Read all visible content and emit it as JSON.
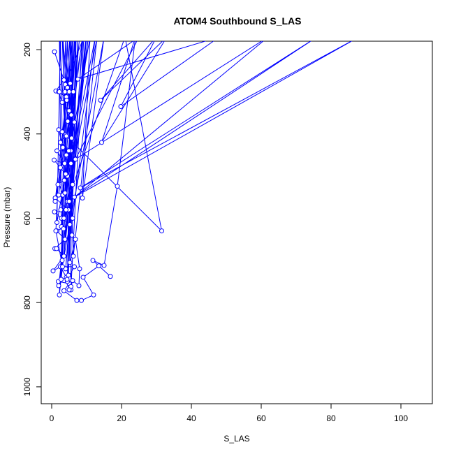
{
  "chart_data": {
    "type": "line",
    "title": "ATOM4 Southbound S_LAS",
    "xlabel": "S_LAS",
    "ylabel": "Pressure (mbar)",
    "xlim": [
      -3,
      109
    ],
    "ylim": [
      1040,
      180
    ],
    "y_inverted": true,
    "x_ticks": [
      0,
      20,
      40,
      60,
      80,
      100
    ],
    "y_ticks": [
      200,
      400,
      600,
      800,
      1000
    ],
    "grid": false,
    "legend": "none",
    "color": "#0000ff",
    "series": [
      {
        "values": [
          [
            0.8,
            205
          ],
          [
            3.5,
            272
          ],
          [
            1.2,
            298
          ],
          [
            4.2,
            312
          ],
          [
            2.0,
            300
          ],
          [
            3.0,
            325
          ],
          [
            5.0,
            345
          ],
          [
            6.5,
            372
          ],
          [
            4.0,
            402
          ],
          [
            2.5,
            420
          ],
          [
            5.5,
            440
          ],
          [
            1.5,
            440
          ],
          [
            3.5,
            470
          ],
          [
            0.7,
            462
          ],
          [
            4.5,
            500
          ],
          [
            2.2,
            520
          ],
          [
            3.2,
            545
          ],
          [
            1.0,
            552
          ],
          [
            4.8,
            580
          ],
          [
            0.8,
            585
          ],
          [
            2.8,
            600
          ],
          [
            5.2,
            615
          ],
          [
            1.5,
            630
          ],
          [
            3.8,
            650
          ],
          [
            0.9,
            672
          ],
          [
            1.4,
            672
          ],
          [
            3.5,
            690
          ],
          [
            0.4,
            725
          ],
          [
            2.5,
            715
          ],
          [
            4.2,
            740
          ],
          [
            1.9,
            750
          ],
          [
            5.0,
            755
          ],
          [
            3.5,
            772
          ],
          [
            7.2,
            795
          ],
          [
            8.5,
            795
          ],
          [
            12.0,
            782
          ],
          [
            9.0,
            740
          ],
          [
            13.5,
            713
          ],
          [
            16.8,
            738
          ],
          [
            11.8,
            700
          ],
          [
            15.0,
            712
          ],
          [
            18.8,
            524
          ],
          [
            24.0,
            170
          ],
          [
            14.3,
            420
          ],
          [
            33.0,
            170
          ],
          [
            14.0,
            320
          ],
          [
            30.0,
            170
          ],
          [
            19.8,
            335
          ],
          [
            48.0,
            170
          ],
          [
            7.5,
            270
          ],
          [
            25.0,
            170
          ],
          [
            6.8,
            460
          ],
          [
            62.0,
            170
          ],
          [
            6.5,
            550
          ],
          [
            88.0,
            170
          ],
          [
            8.2,
            528
          ],
          [
            76.0,
            170
          ],
          [
            4.5,
            560
          ],
          [
            21.0,
            170
          ],
          [
            31.5,
            630
          ],
          [
            3.0,
            395
          ],
          [
            2.5,
            170
          ],
          [
            1.5,
            610
          ],
          [
            11.0,
            170
          ],
          [
            8.8,
            552
          ],
          [
            15.0,
            170
          ],
          [
            2.0,
            760
          ],
          [
            10.0,
            170
          ],
          [
            4.0,
            720
          ],
          [
            9.0,
            170
          ],
          [
            1.0,
            560
          ],
          [
            6.0,
            170
          ],
          [
            5.8,
            640
          ],
          [
            7.0,
            170
          ],
          [
            3.0,
            700
          ],
          [
            4.5,
            170
          ],
          [
            6.0,
            600
          ],
          [
            12.5,
            170
          ],
          [
            3.8,
            540
          ],
          [
            8.0,
            170
          ],
          [
            2.8,
            620
          ],
          [
            2.2,
            170
          ],
          [
            5.0,
            560
          ],
          [
            6.5,
            170
          ],
          [
            3.8,
            650
          ],
          [
            9.8,
            170
          ],
          [
            2.2,
            782
          ],
          [
            5.5,
            170
          ],
          [
            4.5,
            750
          ],
          [
            8.8,
            170
          ],
          [
            4.0,
            495
          ],
          [
            3.2,
            170
          ],
          [
            6.0,
            520
          ],
          [
            7.5,
            170
          ],
          [
            5.5,
            470
          ],
          [
            10.5,
            170
          ],
          [
            2.7,
            745
          ],
          [
            4.0,
            170
          ],
          [
            6.2,
            690
          ],
          [
            13.0,
            170
          ],
          [
            3.5,
            600
          ],
          [
            7.0,
            170
          ],
          [
            4.8,
            735
          ],
          [
            5.8,
            170
          ],
          [
            5.5,
            770
          ],
          [
            9.2,
            170
          ],
          [
            3.9,
            283
          ],
          [
            4.5,
            290
          ],
          [
            5.0,
            300
          ],
          [
            3.0,
            170
          ],
          [
            4.2,
            450
          ],
          [
            6.8,
            170
          ],
          [
            2.0,
            545
          ],
          [
            5.2,
            170
          ],
          [
            5.2,
            705
          ],
          [
            6.8,
            650
          ],
          [
            8.0,
            720
          ],
          [
            7.8,
            760
          ],
          [
            6.0,
            748
          ],
          [
            5.5,
            762
          ],
          [
            5.0,
            770
          ],
          [
            4.4,
            745
          ],
          [
            6.5,
            715
          ],
          [
            3.1,
            715
          ],
          [
            1.2,
            630
          ],
          [
            1.8,
            520
          ],
          [
            2.5,
            480
          ],
          [
            3.2,
            432
          ],
          [
            2.0,
            390
          ],
          [
            2.2,
            300
          ],
          [
            3.8,
            300
          ],
          [
            4.6,
            370
          ],
          [
            5.6,
            355
          ],
          [
            4.2,
            405
          ],
          [
            3.6,
            510
          ],
          [
            2.6,
            580
          ],
          [
            3.4,
            625
          ],
          [
            4.1,
            580
          ],
          [
            3.7,
            470
          ],
          [
            4.9,
            440
          ],
          [
            5.7,
            410
          ],
          [
            6.2,
            300
          ],
          [
            5.3,
            280
          ],
          [
            4.3,
            320
          ]
        ]
      }
    ]
  }
}
